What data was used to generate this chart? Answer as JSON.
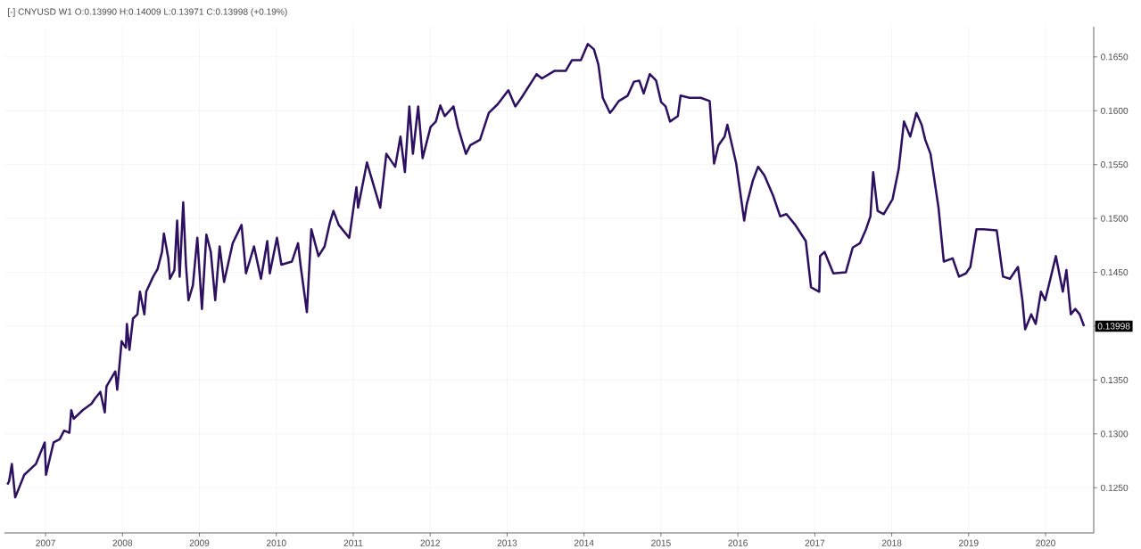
{
  "chart_data": {
    "type": "line",
    "title": "[-]  CNYUSD  W1  O:0.13990  H:0.14009  L:0.13971  C:0.13998  (+0.19%)",
    "x": [
      "2006-07-04",
      "2006-07-12",
      "2006-07-25",
      "2006-08-10",
      "2006-09-22",
      "2006-11-16",
      "2006-12-28",
      "2007-01-03",
      "2007-02-08",
      "2007-03-09",
      "2007-03-30",
      "2007-04-24",
      "2007-05-03",
      "2007-05-15",
      "2007-06-26",
      "2007-08-07",
      "2007-08-24",
      "2007-09-18",
      "2007-10-09",
      "2007-10-17",
      "2007-11-28",
      "2007-12-07",
      "2007-12-28",
      "2008-01-17",
      "2008-01-22",
      "2008-02-03",
      "2008-02-20",
      "2008-03-12",
      "2008-03-24",
      "2008-04-14",
      "2008-04-23",
      "2008-05-26",
      "2008-06-16",
      "2008-07-07",
      "2008-07-16",
      "2008-08-06",
      "2008-08-14",
      "2008-09-04",
      "2008-09-17",
      "2008-09-29",
      "2008-10-16",
      "2008-10-29",
      "2008-11-10",
      "2008-12-01",
      "2008-12-22",
      "2009-01-13",
      "2009-02-03",
      "2009-02-24",
      "2009-03-17",
      "2009-04-07",
      "2009-04-28",
      "2009-06-08",
      "2009-07-20",
      "2009-08-10",
      "2009-09-17",
      "2009-10-20",
      "2009-11-19",
      "2009-12-01",
      "2010-01-04",
      "2010-01-25",
      "2010-03-16",
      "2010-04-14",
      "2010-04-27",
      "2010-05-26",
      "2010-06-16",
      "2010-07-20",
      "2010-08-18",
      "2010-09-12",
      "2010-09-29",
      "2010-10-24",
      "2010-12-13",
      "2011-01-16",
      "2011-01-24",
      "2011-03-07",
      "2011-05-09",
      "2011-06-07",
      "2011-07-19",
      "2011-08-13",
      "2011-09-03",
      "2011-09-24",
      "2011-10-11",
      "2011-11-05",
      "2011-11-26",
      "2012-01-03",
      "2012-01-28",
      "2012-02-18",
      "2012-03-10",
      "2012-04-21",
      "2012-05-12",
      "2012-06-19",
      "2012-07-10",
      "2012-08-25",
      "2012-10-06",
      "2012-11-17",
      "2013-01-07",
      "2013-02-09",
      "2013-03-10",
      "2013-05-21",
      "2013-06-15",
      "2013-08-13",
      "2013-10-06",
      "2013-11-05",
      "2013-12-17",
      "2014-01-19",
      "2014-02-17",
      "2014-03-10",
      "2014-03-31",
      "2014-05-04",
      "2014-05-17",
      "2014-06-15",
      "2014-07-27",
      "2014-08-26",
      "2014-09-20",
      "2014-10-11",
      "2014-11-09",
      "2014-12-09",
      "2015-01-02",
      "2015-01-23",
      "2015-02-13",
      "2015-03-22",
      "2015-04-04",
      "2015-05-16",
      "2015-07-09",
      "2015-08-20",
      "2015-09-10",
      "2015-10-01",
      "2015-10-30",
      "2015-11-12",
      "2015-12-24",
      "2016-01-31",
      "2016-02-12",
      "2016-03-12",
      "2016-04-06",
      "2016-05-06",
      "2016-06-17",
      "2016-07-20",
      "2016-08-19",
      "2016-09-30",
      "2016-11-19",
      "2016-12-14",
      "2017-01-22",
      "2017-01-26",
      "2017-02-16",
      "2017-03-30",
      "2017-05-28",
      "2017-06-30",
      "2017-08-03",
      "2017-09-01",
      "2017-09-22",
      "2017-10-05",
      "2017-10-26",
      "2017-11-24",
      "2018-01-05",
      "2018-02-03",
      "2018-02-28",
      "2018-03-30",
      "2018-04-28",
      "2018-05-23",
      "2018-06-09",
      "2018-07-04",
      "2018-08-11",
      "2018-09-05",
      "2018-10-17",
      "2018-11-16",
      "2018-12-19",
      "2019-01-09",
      "2019-02-07",
      "2019-03-12",
      "2019-05-14",
      "2019-06-13",
      "2019-07-16",
      "2019-08-23",
      "2019-09-13",
      "2019-09-26",
      "2019-10-25",
      "2019-11-15",
      "2019-12-10",
      "2019-12-30",
      "2020-02-19",
      "2020-03-23",
      "2020-04-09",
      "2020-04-30",
      "2020-05-21",
      "2020-06-11",
      "2020-07-02"
    ],
    "series": [
      {
        "color": "#2d1060",
        "values": [
          0.1253,
          0.1256,
          0.1272,
          0.1241,
          0.1262,
          0.1272,
          0.1292,
          0.1262,
          0.1292,
          0.1295,
          0.1303,
          0.1301,
          0.1322,
          0.1314,
          0.1322,
          0.1328,
          0.1333,
          0.1339,
          0.132,
          0.1344,
          0.1358,
          0.1341,
          0.1386,
          0.138,
          0.1402,
          0.1378,
          0.1407,
          0.1411,
          0.1432,
          0.1411,
          0.1432,
          0.1446,
          0.1453,
          0.1469,
          0.1486,
          0.1463,
          0.1444,
          0.1452,
          0.1498,
          0.1446,
          0.1515,
          0.1457,
          0.1424,
          0.1438,
          0.1482,
          0.1416,
          0.1485,
          0.1469,
          0.1424,
          0.1474,
          0.1441,
          0.1477,
          0.1494,
          0.1449,
          0.1474,
          0.1444,
          0.1479,
          0.1449,
          0.1482,
          0.1457,
          0.146,
          0.1477,
          0.1455,
          0.1413,
          0.149,
          0.1465,
          0.1474,
          0.1496,
          0.1507,
          0.1494,
          0.1482,
          0.1529,
          0.151,
          0.1552,
          0.151,
          0.156,
          0.1548,
          0.1576,
          0.1543,
          0.1604,
          0.156,
          0.1604,
          0.1556,
          0.1585,
          0.159,
          0.1605,
          0.1595,
          0.1604,
          0.1585,
          0.156,
          0.1568,
          0.1573,
          0.1598,
          0.1606,
          0.1619,
          0.1604,
          0.1612,
          0.1634,
          0.163,
          0.1637,
          0.1637,
          0.1647,
          0.1647,
          0.1662,
          0.1657,
          0.1643,
          0.1612,
          0.1598,
          0.1601,
          0.1609,
          0.1614,
          0.1627,
          0.1628,
          0.1616,
          0.1634,
          0.1628,
          0.1608,
          0.1604,
          0.159,
          0.1595,
          0.1614,
          0.1612,
          0.1612,
          0.1609,
          0.1551,
          0.1568,
          0.1576,
          0.1587,
          0.1551,
          0.1498,
          0.1513,
          0.1535,
          0.1548,
          0.154,
          0.1521,
          0.1502,
          0.1504,
          0.1494,
          0.1479,
          0.1436,
          0.1432,
          0.1465,
          0.1469,
          0.1449,
          0.145,
          0.1473,
          0.1477,
          0.149,
          0.1502,
          0.1543,
          0.1507,
          0.1504,
          0.1518,
          0.1546,
          0.159,
          0.1576,
          0.1598,
          0.1587,
          0.1573,
          0.156,
          0.151,
          0.146,
          0.1463,
          0.1446,
          0.1449,
          0.1455,
          0.149,
          0.149,
          0.1489,
          0.1446,
          0.1444,
          0.1455,
          0.1424,
          0.1397,
          0.1411,
          0.1402,
          0.1432,
          0.1424,
          0.1465,
          0.1432,
          0.1452,
          0.1411,
          0.1416,
          0.1411,
          0.14
        ]
      }
    ],
    "xlim": [
      "2006-06-20",
      "2020-08-17"
    ],
    "xticks": [
      {
        "value": "2007-01-01",
        "label": "2007"
      },
      {
        "value": "2008-01-01",
        "label": "2008"
      },
      {
        "value": "2009-01-01",
        "label": "2009"
      },
      {
        "value": "2010-01-01",
        "label": "2010"
      },
      {
        "value": "2011-01-01",
        "label": "2011"
      },
      {
        "value": "2012-01-01",
        "label": "2012"
      },
      {
        "value": "2013-01-01",
        "label": "2013"
      },
      {
        "value": "2014-01-01",
        "label": "2014"
      },
      {
        "value": "2015-01-01",
        "label": "2015"
      },
      {
        "value": "2016-01-01",
        "label": "2016"
      },
      {
        "value": "2017-01-01",
        "label": "2017"
      },
      {
        "value": "2018-01-01",
        "label": "2018"
      },
      {
        "value": "2019-01-01",
        "label": "2019"
      },
      {
        "value": "2020-01-01",
        "label": "2020"
      }
    ],
    "ylim": [
      0.1208,
      0.1678
    ],
    "yticks": [
      {
        "value": 0.125,
        "label": "0.1250"
      },
      {
        "value": 0.13,
        "label": "0.1300"
      },
      {
        "value": 0.135,
        "label": "0.1350"
      },
      {
        "value": 0.14,
        "label": null
      },
      {
        "value": 0.145,
        "label": "0.1450"
      },
      {
        "value": 0.15,
        "label": "0.1500"
      },
      {
        "value": 0.155,
        "label": "0.1550"
      },
      {
        "value": 0.16,
        "label": "0.1600"
      },
      {
        "value": 0.165,
        "label": "0.1650"
      }
    ],
    "grid": true,
    "annotations": [
      "0.13998"
    ]
  }
}
